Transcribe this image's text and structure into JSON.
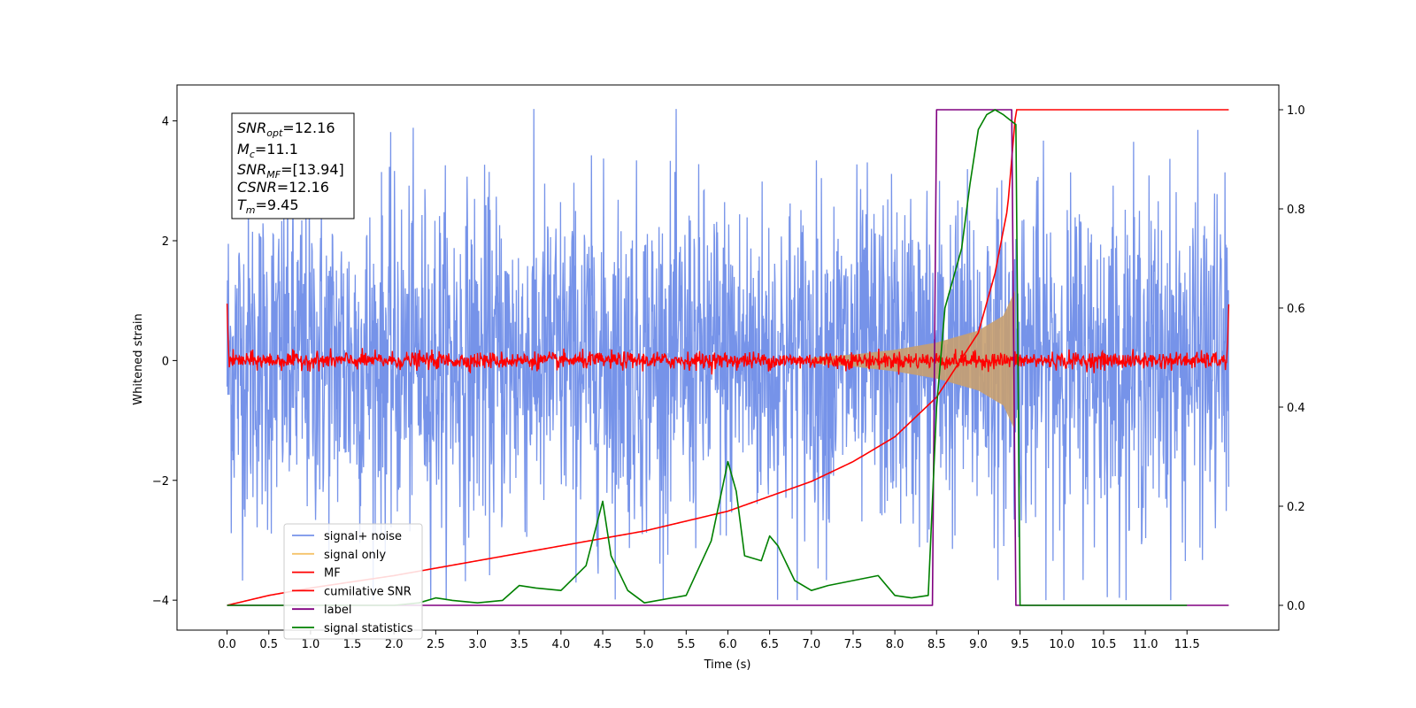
{
  "chart_data": {
    "type": "line",
    "xlabel": "Time (s)",
    "ylabel": "Whitened strain",
    "xlim": [
      -0.6,
      12.6
    ],
    "ylim": [
      -4.5,
      4.6
    ],
    "y2lim": [
      -0.05,
      1.05
    ],
    "x_ticks": [
      "0.0",
      "0.5",
      "1.0",
      "1.5",
      "2.0",
      "2.5",
      "3.0",
      "3.5",
      "4.0",
      "4.5",
      "5.0",
      "5.5",
      "6.0",
      "6.5",
      "7.0",
      "7.5",
      "8.0",
      "8.5",
      "9.0",
      "9.5",
      "10.0",
      "10.5",
      "11.0",
      "11.5"
    ],
    "y_ticks": [
      "4",
      "2",
      "0",
      "−2",
      "−4"
    ],
    "y_tick_values": [
      4,
      2,
      0,
      -2,
      -4
    ],
    "y2_ticks": [
      "1.0",
      "0.8",
      "0.6",
      "0.4",
      "0.2",
      "0.0"
    ],
    "y2_tick_values": [
      1.0,
      0.8,
      0.6,
      0.4,
      0.2,
      0.0
    ],
    "grid": false,
    "legend_position": "lower-left",
    "info_box": {
      "snr_opt": {
        "base": "SNR",
        "sub": "opt",
        "value": "=12.16"
      },
      "mc": {
        "base": "M",
        "sub": "c",
        "value": "=11.1"
      },
      "snr_mf": {
        "base": "SNR",
        "sub": "MF",
        "value": "=[13.94]"
      },
      "csnr": {
        "base": "CSNR",
        "sub": "",
        "value": "=12.16"
      },
      "tm": {
        "base": "T",
        "sub": "m",
        "value": "=9.45"
      }
    },
    "series": [
      {
        "name": "signal+ noise",
        "color": "#4169e1",
        "axis": "left",
        "noise_amplitude": 1.4,
        "x_range": [
          0.0,
          12.0
        ]
      },
      {
        "name": "signal only",
        "color": "#f5c36b",
        "axis": "left",
        "envelope": [
          [
            7.0,
            0.05
          ],
          [
            7.5,
            0.1
          ],
          [
            8.0,
            0.18
          ],
          [
            8.5,
            0.3
          ],
          [
            9.0,
            0.5
          ],
          [
            9.3,
            0.75
          ],
          [
            9.45,
            1.2
          ]
        ]
      },
      {
        "name": "MF",
        "color": "#ff0000",
        "axis": "left",
        "x": [
          0.0,
          0.02,
          11.98,
          12.0
        ],
        "y": [
          1.0,
          0.0,
          0.0,
          0.9
        ],
        "noise_amplitude": 0.07
      },
      {
        "name": "cumilative SNR",
        "color": "#ff0000",
        "axis": "right",
        "x": [
          0.0,
          0.5,
          1.0,
          2.0,
          3.0,
          4.0,
          5.0,
          6.0,
          7.0,
          7.5,
          8.0,
          8.5,
          9.0,
          9.2,
          9.35,
          9.45,
          12.0
        ],
        "y": [
          0.0,
          0.02,
          0.035,
          0.06,
          0.09,
          0.12,
          0.15,
          0.19,
          0.25,
          0.29,
          0.34,
          0.42,
          0.55,
          0.67,
          0.8,
          1.0,
          1.0
        ]
      },
      {
        "name": "label",
        "color": "#800080",
        "axis": "right",
        "x": [
          0.0,
          8.45,
          8.5,
          9.4,
          9.45,
          12.0
        ],
        "y": [
          0.0,
          0.0,
          1.0,
          1.0,
          0.0,
          0.0
        ]
      },
      {
        "name": "signal statistics",
        "color": "#008000",
        "axis": "right",
        "x": [
          0.0,
          0.5,
          1.0,
          1.5,
          2.0,
          2.3,
          2.5,
          2.7,
          3.0,
          3.3,
          3.5,
          3.7,
          4.0,
          4.3,
          4.5,
          4.6,
          4.8,
          5.0,
          5.5,
          5.8,
          6.0,
          6.1,
          6.2,
          6.4,
          6.5,
          6.6,
          6.8,
          7.0,
          7.2,
          7.5,
          7.8,
          8.0,
          8.2,
          8.4,
          8.5,
          8.6,
          8.8,
          8.9,
          9.0,
          9.1,
          9.2,
          9.3,
          9.45,
          9.5,
          10.0,
          11.0,
          11.5
        ],
        "y": [
          0.0,
          0.0,
          0.0,
          0.0,
          0.0,
          0.005,
          0.015,
          0.01,
          0.005,
          0.01,
          0.04,
          0.035,
          0.03,
          0.08,
          0.21,
          0.1,
          0.03,
          0.005,
          0.02,
          0.13,
          0.29,
          0.23,
          0.1,
          0.09,
          0.14,
          0.12,
          0.05,
          0.03,
          0.04,
          0.05,
          0.06,
          0.02,
          0.015,
          0.02,
          0.4,
          0.6,
          0.72,
          0.85,
          0.96,
          0.99,
          1.0,
          0.99,
          0.97,
          0.0,
          0.0,
          0.0,
          0.0
        ]
      }
    ]
  }
}
